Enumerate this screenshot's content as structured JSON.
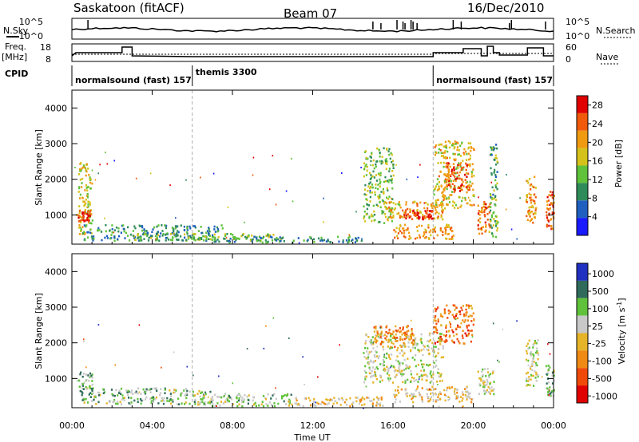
{
  "header": {
    "station": "Saskatoon (fitACF)",
    "beam": "Beam 07",
    "date": "16/Dec/2010"
  },
  "left_labels": {
    "nsky": "N.Sky",
    "freq": "Freq.",
    "freq_unit": "[MHz]",
    "cpid": "CPID"
  },
  "right_labels": {
    "nsearch": "N.Search",
    "nave": "Nave"
  },
  "noise_axis": {
    "left_ticks": [
      "10^5",
      "10^0"
    ],
    "right_ticks": [
      "10^5",
      "10^0"
    ]
  },
  "freq_axis": {
    "left_ticks": [
      "18",
      "8"
    ],
    "right_ticks": [
      "60",
      "0"
    ]
  },
  "cpid_segments": [
    {
      "label": "normalsound (fast) 157",
      "start_hour": 0.0
    },
    {
      "label": "themis 3300",
      "start_hour": 6.0
    },
    {
      "label": "normalsound (fast) 157",
      "start_hour": 18.0
    }
  ],
  "chart_data": [
    {
      "type": "heatmap",
      "panel": "power",
      "xlabel": "Time UT",
      "ylabel": "Slant Range [km]",
      "x_range_hours": [
        0,
        24
      ],
      "y_range_km": [
        180,
        4500
      ],
      "y_ticks": [
        "1000",
        "2000",
        "3000",
        "4000"
      ],
      "colorbar_label": "Power [dB]",
      "colorbar_ticks": [
        "4",
        "8",
        "12",
        "16",
        "20",
        "24",
        "28"
      ],
      "colorbar_range": [
        0,
        30
      ],
      "colors": [
        "#1a1aff",
        "#1f5fbf",
        "#2f8c5a",
        "#5fc23a",
        "#d4c21a",
        "#f09a12",
        "#f05a0a",
        "#e00000"
      ],
      "regions": [
        {
          "t0": 0.3,
          "t1": 1.0,
          "r0": 400,
          "r1": 2500,
          "level": 0.55
        },
        {
          "t0": 0.2,
          "t1": 0.9,
          "r0": 850,
          "r1": 1150,
          "level": 0.9
        },
        {
          "t0": 0.5,
          "t1": 7.5,
          "r0": 300,
          "r1": 750,
          "level": 0.3
        },
        {
          "t0": 3.0,
          "t1": 10.5,
          "r0": 300,
          "r1": 500,
          "level": 0.45
        },
        {
          "t0": 7.0,
          "t1": 14.5,
          "r0": 250,
          "r1": 420,
          "level": 0.3
        },
        {
          "t0": 14.5,
          "t1": 16.0,
          "r0": 800,
          "r1": 2900,
          "level": 0.45
        },
        {
          "t0": 15.5,
          "t1": 18.5,
          "r0": 900,
          "r1": 1400,
          "level": 0.65
        },
        {
          "t0": 16.5,
          "t1": 18.0,
          "r0": 900,
          "r1": 1150,
          "level": 0.92
        },
        {
          "t0": 16.0,
          "t1": 19.0,
          "r0": 350,
          "r1": 750,
          "level": 0.7
        },
        {
          "t0": 18.0,
          "t1": 20.0,
          "r0": 1200,
          "r1": 3100,
          "level": 0.6
        },
        {
          "t0": 18.5,
          "t1": 19.8,
          "r0": 1700,
          "r1": 2500,
          "level": 0.82
        },
        {
          "t0": 20.2,
          "t1": 20.8,
          "r0": 500,
          "r1": 1400,
          "level": 0.75
        },
        {
          "t0": 20.8,
          "t1": 21.2,
          "r0": 400,
          "r1": 3000,
          "level": 0.4
        },
        {
          "t0": 22.6,
          "t1": 23.1,
          "r0": 800,
          "r1": 2100,
          "level": 0.7
        },
        {
          "t0": 23.6,
          "t1": 24.0,
          "r0": 600,
          "r1": 1700,
          "level": 0.8
        }
      ]
    },
    {
      "type": "heatmap",
      "panel": "velocity",
      "xlabel": "Time UT",
      "ylabel": "Slant Range [km]",
      "x_range_hours": [
        0,
        24
      ],
      "y_range_km": [
        180,
        4500
      ],
      "y_ticks": [
        "1000",
        "2000",
        "3000",
        "4000"
      ],
      "colorbar_label": "Velocity [m s^-1]",
      "colorbar_ticks": [
        "1000",
        "500",
        "100",
        "25",
        "-25",
        "-100",
        "-500",
        "-1000"
      ],
      "colors": [
        "#2030c0",
        "#2f6a5a",
        "#5fc23a",
        "#c8c8c8",
        "#e6b428",
        "#f08a14",
        "#f04a0a",
        "#e00000"
      ],
      "regions": [
        {
          "t0": 0.3,
          "t1": 1.0,
          "r0": 350,
          "r1": 1200,
          "level": 0.35
        },
        {
          "t0": 0.8,
          "t1": 7.0,
          "r0": 300,
          "r1": 750,
          "level": 0.35
        },
        {
          "t0": 6.0,
          "t1": 11.0,
          "r0": 250,
          "r1": 600,
          "level": 0.4
        },
        {
          "t0": 11.0,
          "t1": 15.5,
          "r0": 250,
          "r1": 500,
          "level": 0.55
        },
        {
          "t0": 14.5,
          "t1": 18.5,
          "r0": 900,
          "r1": 2300,
          "level": 0.45
        },
        {
          "t0": 16.0,
          "t1": 20.0,
          "r0": 350,
          "r1": 800,
          "level": 0.55
        },
        {
          "t0": 15.0,
          "t1": 17.0,
          "r0": 1900,
          "r1": 2500,
          "level": 0.7
        },
        {
          "t0": 18.0,
          "t1": 20.0,
          "r0": 2000,
          "r1": 3100,
          "level": 0.72
        },
        {
          "t0": 20.2,
          "t1": 21.0,
          "r0": 500,
          "r1": 1300,
          "level": 0.45
        },
        {
          "t0": 22.6,
          "t1": 23.2,
          "r0": 800,
          "r1": 2100,
          "level": 0.45
        },
        {
          "t0": 23.6,
          "t1": 24.0,
          "r0": 500,
          "r1": 1400,
          "level": 0.35
        }
      ]
    }
  ],
  "time_axis": {
    "tick_labels": [
      "00:00",
      "04:00",
      "08:00",
      "12:00",
      "16:00",
      "20:00",
      "00:00"
    ],
    "xlabel": "Time UT"
  }
}
